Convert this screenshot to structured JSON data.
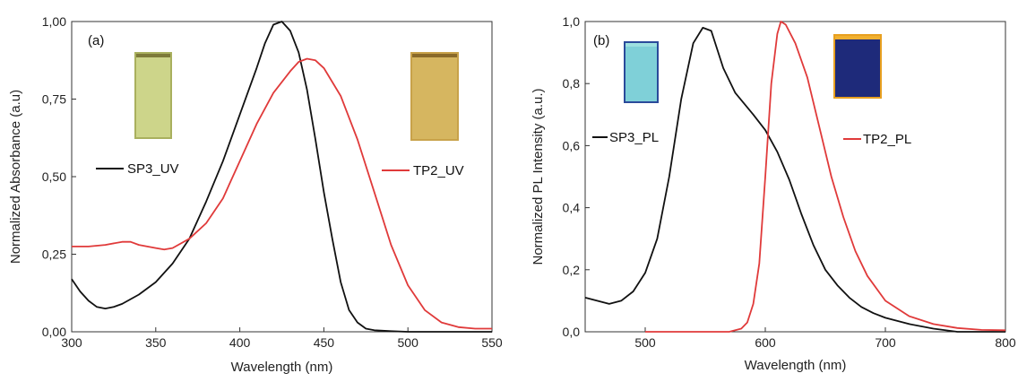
{
  "chart_data": [
    {
      "type": "line",
      "panel_label": "(a)",
      "xlabel": "Wavelength (nm)",
      "ylabel": "Normalized Absorbance (a.u)",
      "xlim": [
        300,
        550
      ],
      "ylim": [
        0,
        1
      ],
      "x_ticks": [
        "300",
        "350",
        "400",
        "450",
        "500",
        "550"
      ],
      "y_ticks": [
        "0,00",
        "0,25",
        "0,50",
        "0,75",
        "1,00"
      ],
      "legend": [
        "SP3_UV",
        "TP2_UV"
      ],
      "inset_images": [
        "yellow-green film sample photo",
        "amber film sample photo"
      ],
      "series": [
        {
          "name": "SP3_UV",
          "color": "#111111",
          "points": [
            [
              300,
              0.17
            ],
            [
              305,
              0.13
            ],
            [
              310,
              0.1
            ],
            [
              315,
              0.08
            ],
            [
              320,
              0.075
            ],
            [
              325,
              0.08
            ],
            [
              330,
              0.09
            ],
            [
              340,
              0.12
            ],
            [
              350,
              0.16
            ],
            [
              360,
              0.22
            ],
            [
              370,
              0.3
            ],
            [
              380,
              0.42
            ],
            [
              390,
              0.55
            ],
            [
              400,
              0.7
            ],
            [
              410,
              0.85
            ],
            [
              415,
              0.93
            ],
            [
              420,
              0.99
            ],
            [
              425,
              1.0
            ],
            [
              430,
              0.97
            ],
            [
              435,
              0.9
            ],
            [
              440,
              0.78
            ],
            [
              445,
              0.62
            ],
            [
              450,
              0.45
            ],
            [
              455,
              0.3
            ],
            [
              460,
              0.16
            ],
            [
              465,
              0.07
            ],
            [
              470,
              0.03
            ],
            [
              475,
              0.01
            ],
            [
              480,
              0.005
            ],
            [
              490,
              0.002
            ],
            [
              500,
              0.0
            ],
            [
              550,
              0.0
            ]
          ]
        },
        {
          "name": "TP2_UV",
          "color": "#e03a3a",
          "points": [
            [
              300,
              0.275
            ],
            [
              310,
              0.275
            ],
            [
              320,
              0.28
            ],
            [
              330,
              0.29
            ],
            [
              335,
              0.29
            ],
            [
              340,
              0.28
            ],
            [
              350,
              0.27
            ],
            [
              355,
              0.265
            ],
            [
              360,
              0.27
            ],
            [
              370,
              0.3
            ],
            [
              380,
              0.35
            ],
            [
              390,
              0.43
            ],
            [
              400,
              0.55
            ],
            [
              410,
              0.67
            ],
            [
              420,
              0.77
            ],
            [
              430,
              0.84
            ],
            [
              435,
              0.87
            ],
            [
              440,
              0.88
            ],
            [
              445,
              0.875
            ],
            [
              450,
              0.85
            ],
            [
              460,
              0.76
            ],
            [
              470,
              0.62
            ],
            [
              480,
              0.45
            ],
            [
              490,
              0.28
            ],
            [
              500,
              0.15
            ],
            [
              510,
              0.07
            ],
            [
              520,
              0.03
            ],
            [
              530,
              0.015
            ],
            [
              540,
              0.01
            ],
            [
              550,
              0.01
            ]
          ]
        }
      ]
    },
    {
      "type": "line",
      "panel_label": "(b)",
      "xlabel": "Wavelength (nm)",
      "ylabel": "Normalized PL Intensity (a.u.)",
      "xlim": [
        450,
        800
      ],
      "ylim": [
        0,
        1
      ],
      "x_ticks": [
        "500",
        "600",
        "700",
        "800"
      ],
      "y_ticks": [
        "0,0",
        "0,2",
        "0,4",
        "0,6",
        "0,8",
        "1,0"
      ],
      "legend": [
        "SP3_PL",
        "TP2_PL"
      ],
      "inset_images": [
        "cyan fluorescent film photo",
        "orange fluorescent film photo"
      ],
      "series": [
        {
          "name": "SP3_PL",
          "color": "#111111",
          "points": [
            [
              450,
              0.11
            ],
            [
              460,
              0.1
            ],
            [
              470,
              0.09
            ],
            [
              480,
              0.1
            ],
            [
              490,
              0.13
            ],
            [
              500,
              0.19
            ],
            [
              510,
              0.3
            ],
            [
              520,
              0.5
            ],
            [
              530,
              0.75
            ],
            [
              540,
              0.93
            ],
            [
              548,
              0.98
            ],
            [
              555,
              0.97
            ],
            [
              565,
              0.85
            ],
            [
              575,
              0.77
            ],
            [
              590,
              0.7
            ],
            [
              600,
              0.65
            ],
            [
              610,
              0.58
            ],
            [
              620,
              0.49
            ],
            [
              630,
              0.38
            ],
            [
              640,
              0.28
            ],
            [
              650,
              0.2
            ],
            [
              660,
              0.15
            ],
            [
              670,
              0.11
            ],
            [
              680,
              0.08
            ],
            [
              690,
              0.06
            ],
            [
              700,
              0.045
            ],
            [
              720,
              0.025
            ],
            [
              740,
              0.01
            ],
            [
              760,
              0.0
            ],
            [
              800,
              0.0
            ]
          ]
        },
        {
          "name": "TP2_PL",
          "color": "#e03a3a",
          "points": [
            [
              500,
              0.0
            ],
            [
              570,
              0.0
            ],
            [
              580,
              0.01
            ],
            [
              585,
              0.03
            ],
            [
              590,
              0.09
            ],
            [
              595,
              0.22
            ],
            [
              600,
              0.5
            ],
            [
              605,
              0.8
            ],
            [
              610,
              0.96
            ],
            [
              613,
              1.0
            ],
            [
              617,
              0.99
            ],
            [
              625,
              0.93
            ],
            [
              635,
              0.82
            ],
            [
              645,
              0.66
            ],
            [
              655,
              0.5
            ],
            [
              665,
              0.37
            ],
            [
              675,
              0.26
            ],
            [
              685,
              0.18
            ],
            [
              700,
              0.1
            ],
            [
              720,
              0.05
            ],
            [
              740,
              0.025
            ],
            [
              760,
              0.012
            ],
            [
              780,
              0.006
            ],
            [
              800,
              0.005
            ]
          ]
        }
      ]
    }
  ]
}
